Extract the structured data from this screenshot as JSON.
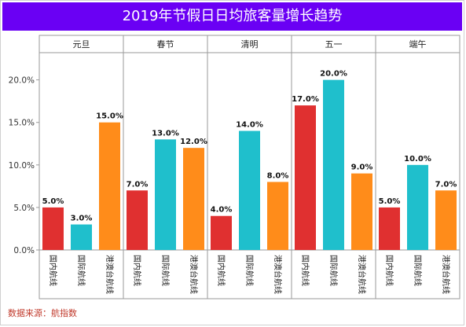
{
  "chart_data": {
    "type": "bar",
    "title": "2019年节假日日均旅客量增长趋势",
    "groups": [
      "元旦",
      "春节",
      "清明",
      "五一",
      "端午"
    ],
    "series_names": [
      "国内航线",
      "国际航线",
      "港澳台航线"
    ],
    "values": [
      [
        5.0,
        3.0,
        15.0
      ],
      [
        7.0,
        13.0,
        12.0
      ],
      [
        4.0,
        14.0,
        8.0
      ],
      [
        17.0,
        20.0,
        9.0
      ],
      [
        5.0,
        10.0,
        7.0
      ]
    ],
    "value_labels": [
      [
        "5.0%",
        "3.0%",
        "15.0%"
      ],
      [
        "7.0%",
        "13.0%",
        "12.0%"
      ],
      [
        "4.0%",
        "14.0%",
        "8.0%"
      ],
      [
        "17.0%",
        "20.0%",
        "9.0%"
      ],
      [
        "5.0%",
        "10.0%",
        "7.0%"
      ]
    ],
    "y_ticks": [
      "0.0%",
      "5.0%",
      "10.0%",
      "15.0%",
      "20.0%"
    ],
    "y_tick_values": [
      0,
      5,
      10,
      15,
      20
    ],
    "ylim": [
      0,
      22
    ],
    "colors": [
      "#e03030",
      "#1fbfcc",
      "#ff8c1a"
    ],
    "source": "数据来源：航指数"
  },
  "colors": {
    "title_bg": "#6a00f4",
    "source_text": "#c0392b"
  }
}
